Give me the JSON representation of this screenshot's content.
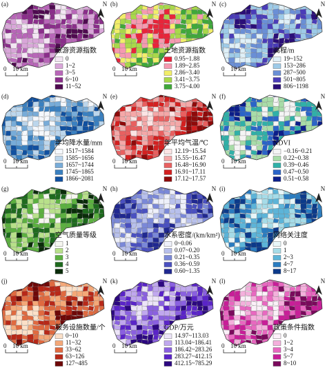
{
  "panels": [
    {
      "label": "(a)",
      "title": "旅游资源指数",
      "north": "N",
      "scale": [
        "0",
        "10 km"
      ],
      "legend": [
        {
          "label": "0",
          "color": "#f3e6f3"
        },
        {
          "label": "1~2",
          "color": "#d9a6d9"
        },
        {
          "label": "3~5",
          "color": "#b866b8"
        },
        {
          "label": "6~10",
          "color": "#8a2e8a"
        },
        {
          "label": "11~52",
          "color": "#4f0a50"
        }
      ]
    },
    {
      "label": "(b)",
      "title": "土地资源指数",
      "north": "N",
      "scale": [
        "0",
        "10 km"
      ],
      "legend": [
        {
          "label": "0.95~1.88",
          "color": "#e8243a"
        },
        {
          "label": "1.89~2.85",
          "color": "#f59ab0"
        },
        {
          "label": "2.86~3.40",
          "color": "#f2ee6a"
        },
        {
          "label": "3.41~3.75",
          "color": "#a8d84a"
        },
        {
          "label": "3.75~4.00",
          "color": "#3fa83a"
        }
      ]
    },
    {
      "label": "(c)",
      "title": "高程/m",
      "north": "N",
      "scale": [
        "0",
        "10 km"
      ],
      "legend": [
        {
          "label": "19~152",
          "color": "#dff0f8"
        },
        {
          "label": "153~286",
          "color": "#9ecbe8"
        },
        {
          "label": "287~500",
          "color": "#6a8fd6"
        },
        {
          "label": "501~805",
          "color": "#4a3cb8"
        },
        {
          "label": "806~1198",
          "color": "#2a0e78"
        }
      ]
    },
    {
      "label": "(d)",
      "title": "年均降水量/mm",
      "north": "N",
      "scale": [
        "0",
        "10 km"
      ],
      "legend": [
        {
          "label": "1517~1584",
          "color": "#f5f8fc"
        },
        {
          "label": "1585~1656",
          "color": "#bcd6ec"
        },
        {
          "label": "1657~1744",
          "color": "#78acd8"
        },
        {
          "label": "1745~1865",
          "color": "#3a80c0"
        },
        {
          "label": "1866~2081",
          "color": "#1050a0"
        }
      ]
    },
    {
      "label": "(e)",
      "title": "年平均气温/℃",
      "north": "N",
      "scale": [
        "0",
        "10 km"
      ],
      "legend": [
        {
          "label": "12.19~15.54",
          "color": "#fbe4e4"
        },
        {
          "label": "15.55~16.47",
          "color": "#f4a8a8"
        },
        {
          "label": "16.48~16.90",
          "color": "#e86060"
        },
        {
          "label": "16.91~17.11",
          "color": "#d42020"
        },
        {
          "label": "17.12~17.57",
          "color": "#8e0a0a"
        }
      ]
    },
    {
      "label": "(f)",
      "title": "NDVI",
      "north": "N",
      "scale": [
        "0",
        "10 km"
      ],
      "legend": [
        {
          "label": "−0.16~0.21",
          "color": "#f4f4f4"
        },
        {
          "label": "0.22~0.38",
          "color": "#a8dca8"
        },
        {
          "label": "0.39~0.46",
          "color": "#30b0a8"
        },
        {
          "label": "0.47~0.50",
          "color": "#2a64c8"
        },
        {
          "label": "0.51~0.58",
          "color": "#0c1e8a"
        }
      ]
    },
    {
      "label": "(g)",
      "title": "空气质量等级",
      "north": "N",
      "scale": [
        "0",
        "10 km"
      ],
      "legend": [
        {
          "label": "1",
          "color": "#f6f6f0"
        },
        {
          "label": "2",
          "color": "#b8e08a"
        },
        {
          "label": "3",
          "color": "#5cb040"
        },
        {
          "label": "4",
          "color": "#1e6a1e"
        },
        {
          "label": "5",
          "color": "#0a2c0a"
        }
      ]
    },
    {
      "label": "(h)",
      "title": "水系密度/(km/km²)",
      "north": "N",
      "scale": [
        "0",
        "10 km"
      ],
      "legend": [
        {
          "label": "0~0.06",
          "color": "#eef0fa"
        },
        {
          "label": "0.07~0.20",
          "color": "#b8c0ec"
        },
        {
          "label": "0.21~0.35",
          "color": "#7a88d8"
        },
        {
          "label": "0.36~0.59",
          "color": "#4a50c0"
        },
        {
          "label": "0.60~1.35",
          "color": "#202890"
        }
      ]
    },
    {
      "label": "(i)",
      "title": "网络关注度",
      "north": "N",
      "scale": [
        "0",
        "10 km"
      ],
      "legend": [
        {
          "label": "0",
          "color": "#e8f6f8"
        },
        {
          "label": "1",
          "color": "#a6dce8"
        },
        {
          "label": "2~3",
          "color": "#5cb4d8"
        },
        {
          "label": "4~7",
          "color": "#2a7cc0"
        },
        {
          "label": "8~17",
          "color": "#0c3a8a"
        }
      ]
    },
    {
      "label": "(j)",
      "title": "服务设施数量/个",
      "north": "N",
      "scale": [
        "0",
        "10 km"
      ],
      "legend": [
        {
          "label": "0~10",
          "color": "#fbe0c8"
        },
        {
          "label": "11~32",
          "color": "#f4a878"
        },
        {
          "label": "33~62",
          "color": "#e06a40"
        },
        {
          "label": "63~126",
          "color": "#b82818"
        },
        {
          "label": "127~485",
          "color": "#6e0808"
        }
      ]
    },
    {
      "label": "(k)",
      "title": "GDP/万元",
      "north": "N",
      "scale": [
        "0",
        "10 km"
      ],
      "legend": [
        {
          "label": "14.97~113.03",
          "color": "#ece4f8"
        },
        {
          "label": "113.04~186.41",
          "color": "#c0a8ee"
        },
        {
          "label": "186.42~283.26",
          "color": "#8a60e0"
        },
        {
          "label": "283.27~412.15",
          "color": "#5a24c8"
        },
        {
          "label": "412.15~785.29",
          "color": "#2c0880"
        }
      ]
    },
    {
      "label": "(l)",
      "title": "政策条件指数",
      "north": "N",
      "scale": [
        "0",
        "10 km"
      ],
      "legend": [
        {
          "label": "0",
          "color": "#fbf0f8"
        },
        {
          "label": "1~2",
          "color": "#f4b0dc"
        },
        {
          "label": "3~4",
          "color": "#e868c0"
        },
        {
          "label": "5~7",
          "color": "#c81e98"
        },
        {
          "label": "8~10",
          "color": "#7a0a5c"
        }
      ]
    }
  ]
}
